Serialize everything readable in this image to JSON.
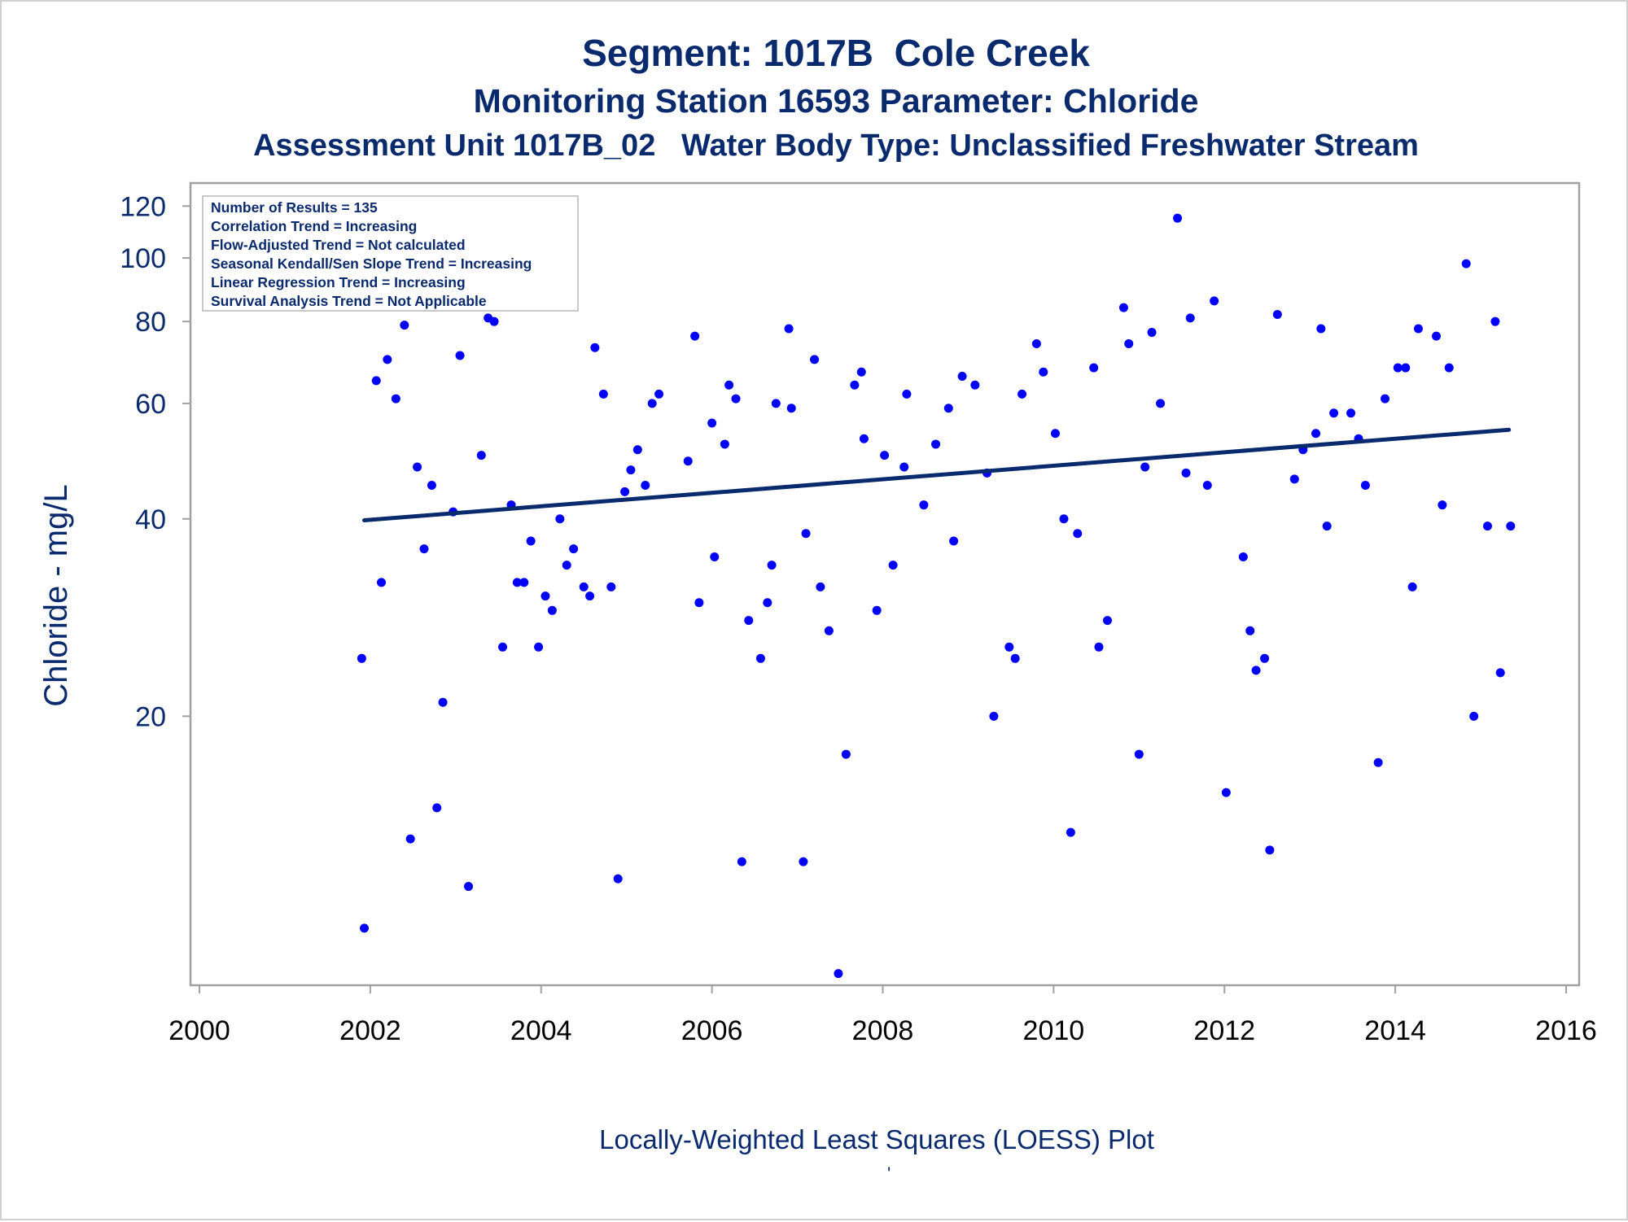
{
  "titles": {
    "line1": "Segment: 1017B  Cole Creek",
    "line2": "Monitoring Station 16593 Parameter: Chloride",
    "line3": "Assessment Unit 1017B_02   Water Body Type: Unclassified Freshwater Stream"
  },
  "footnote": "Locally-Weighted Least Squares (LOESS) Plot",
  "footnote_mark": "'",
  "colors": {
    "title": "#0a2a6e",
    "points": "#0000ff",
    "trend_line": "#0a2a6e",
    "axis": "#a0a0a0"
  },
  "chart_data": {
    "type": "scatter",
    "ylabel": "Chloride - mg/L",
    "xlabel": "",
    "y_scale": "log",
    "xlim": [
      2000,
      2016
    ],
    "ylim": [
      8,
      125
    ],
    "x_ticks": [
      "2000",
      "2002",
      "2004",
      "2006",
      "2008",
      "2010",
      "2012",
      "2014",
      "2016"
    ],
    "y_ticks": [
      "20",
      "40",
      "60",
      "80",
      "100",
      "120"
    ],
    "info_box": [
      "Number of Results = 135",
      "Correlation Trend = Increasing",
      "Flow-Adjusted Trend = Not calculated",
      "Seasonal Kendall/Sen Slope Trend = Increasing",
      "Linear Regression Trend = Increasing",
      "Survival Analysis Trend = Not Applicable"
    ],
    "trend_line": {
      "x": [
        2001.93,
        2015.33
      ],
      "y": [
        39.8,
        54.7
      ]
    },
    "points": [
      [
        2001.9,
        24.5
      ],
      [
        2001.93,
        9.5
      ],
      [
        2002.07,
        65
      ],
      [
        2002.13,
        32
      ],
      [
        2002.2,
        70
      ],
      [
        2002.3,
        61
      ],
      [
        2002.4,
        79
      ],
      [
        2002.47,
        13
      ],
      [
        2002.55,
        48
      ],
      [
        2002.63,
        36
      ],
      [
        2002.72,
        45
      ],
      [
        2002.78,
        14.5
      ],
      [
        2002.85,
        21
      ],
      [
        2002.97,
        41
      ],
      [
        2003.05,
        71
      ],
      [
        2003.15,
        11
      ],
      [
        2003.3,
        50
      ],
      [
        2003.38,
        81
      ],
      [
        2003.45,
        80
      ],
      [
        2003.55,
        25.5
      ],
      [
        2003.65,
        42
      ],
      [
        2003.72,
        32
      ],
      [
        2003.8,
        32
      ],
      [
        2003.88,
        37
      ],
      [
        2003.97,
        25.5
      ],
      [
        2004.05,
        30.5
      ],
      [
        2004.13,
        29
      ],
      [
        2004.22,
        40
      ],
      [
        2004.3,
        34
      ],
      [
        2004.38,
        36
      ],
      [
        2004.5,
        31.5
      ],
      [
        2004.57,
        30.5
      ],
      [
        2004.63,
        73
      ],
      [
        2004.73,
        62
      ],
      [
        2004.82,
        31.5
      ],
      [
        2004.9,
        11.3
      ],
      [
        2004.98,
        44
      ],
      [
        2005.05,
        47.5
      ],
      [
        2005.13,
        51
      ],
      [
        2005.22,
        45
      ],
      [
        2005.3,
        60
      ],
      [
        2005.38,
        62
      ],
      [
        2005.72,
        49
      ],
      [
        2005.8,
        76
      ],
      [
        2005.85,
        29.8
      ],
      [
        2006.0,
        56
      ],
      [
        2006.03,
        35
      ],
      [
        2006.15,
        52
      ],
      [
        2006.2,
        64
      ],
      [
        2006.28,
        61
      ],
      [
        2006.35,
        12
      ],
      [
        2006.43,
        28
      ],
      [
        2006.57,
        24.5
      ],
      [
        2006.65,
        29.8
      ],
      [
        2006.7,
        34
      ],
      [
        2006.75,
        60
      ],
      [
        2006.9,
        78
      ],
      [
        2006.93,
        59
      ],
      [
        2007.07,
        12
      ],
      [
        2007.1,
        38
      ],
      [
        2007.2,
        70
      ],
      [
        2007.27,
        31.5
      ],
      [
        2007.37,
        27
      ],
      [
        2007.48,
        8.1
      ],
      [
        2007.57,
        17.5
      ],
      [
        2007.67,
        64
      ],
      [
        2007.75,
        67
      ],
      [
        2007.78,
        53
      ],
      [
        2007.93,
        29
      ],
      [
        2008.02,
        50
      ],
      [
        2008.12,
        34
      ],
      [
        2008.25,
        48
      ],
      [
        2008.28,
        62
      ],
      [
        2008.48,
        42
      ],
      [
        2008.62,
        52
      ],
      [
        2008.77,
        59
      ],
      [
        2008.83,
        37
      ],
      [
        2008.93,
        66
      ],
      [
        2009.08,
        64
      ],
      [
        2009.22,
        47
      ],
      [
        2009.3,
        20
      ],
      [
        2009.48,
        25.5
      ],
      [
        2009.55,
        24.5
      ],
      [
        2009.63,
        62
      ],
      [
        2009.8,
        74
      ],
      [
        2009.88,
        67
      ],
      [
        2010.02,
        54
      ],
      [
        2010.12,
        40
      ],
      [
        2010.2,
        13.3
      ],
      [
        2010.28,
        38
      ],
      [
        2010.47,
        68
      ],
      [
        2010.53,
        25.5
      ],
      [
        2010.63,
        28
      ],
      [
        2010.82,
        84
      ],
      [
        2010.88,
        74
      ],
      [
        2011.0,
        17.5
      ],
      [
        2011.07,
        48
      ],
      [
        2011.15,
        77
      ],
      [
        2011.25,
        60
      ],
      [
        2011.45,
        115
      ],
      [
        2011.55,
        47
      ],
      [
        2011.6,
        81
      ],
      [
        2011.8,
        45
      ],
      [
        2011.88,
        86
      ],
      [
        2012.02,
        15.3
      ],
      [
        2012.22,
        35
      ],
      [
        2012.3,
        27
      ],
      [
        2012.37,
        23.5
      ],
      [
        2012.47,
        24.5
      ],
      [
        2012.53,
        12.5
      ],
      [
        2012.62,
        82
      ],
      [
        2012.82,
        46
      ],
      [
        2012.92,
        51
      ],
      [
        2013.07,
        54
      ],
      [
        2013.13,
        78
      ],
      [
        2013.2,
        39
      ],
      [
        2013.28,
        58
      ],
      [
        2013.48,
        58
      ],
      [
        2013.57,
        53
      ],
      [
        2013.65,
        45
      ],
      [
        2013.8,
        17
      ],
      [
        2013.88,
        61
      ],
      [
        2014.03,
        68
      ],
      [
        2014.12,
        68
      ],
      [
        2014.2,
        31.5
      ],
      [
        2014.27,
        78
      ],
      [
        2014.48,
        76
      ],
      [
        2014.55,
        42
      ],
      [
        2014.63,
        68
      ],
      [
        2014.83,
        98
      ],
      [
        2014.92,
        20
      ],
      [
        2015.08,
        39
      ],
      [
        2015.17,
        80
      ],
      [
        2015.23,
        23.3
      ],
      [
        2015.35,
        39
      ]
    ]
  }
}
